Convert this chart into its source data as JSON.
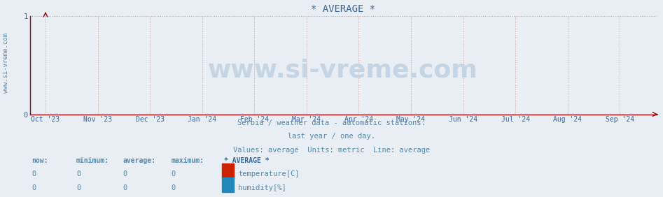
{
  "title": "* AVERAGE *",
  "title_color": "#336699",
  "title_fontsize": 10,
  "bg_color": "#e8eef4",
  "plot_bg_color": "#e8eef4",
  "axis_color": "#990000",
  "grid_color_h": "#99aabb",
  "grid_color_v": "#dd9999",
  "ylim": [
    0,
    1
  ],
  "yticks": [
    0,
    1
  ],
  "tick_color": "#336699",
  "x_labels": [
    "Oct '23",
    "Nov '23",
    "Dec '23",
    "Jan '24",
    "Feb '24",
    "Mar '24",
    "Apr '24",
    "May '24",
    "Jun '24",
    "Jul '24",
    "Aug '24",
    "Sep '24"
  ],
  "x_positions": [
    0,
    1,
    2,
    3,
    4,
    5,
    6,
    7,
    8,
    9,
    10,
    11
  ],
  "xlim": [
    -0.3,
    11.7
  ],
  "watermark_text": "www.si-vreme.com",
  "watermark_color": "#c5d5e5",
  "watermark_fontsize": 26,
  "subtitle_lines": [
    "Serbia / weather data - automatic stations.",
    "last year / one day.",
    "Values: average  Units: metric  Line: average"
  ],
  "subtitle_color": "#5588aa",
  "subtitle_fontsize": 7.5,
  "legend_title": "* AVERAGE *",
  "legend_items": [
    {
      "label": "temperature[C]",
      "color": "#cc2200"
    },
    {
      "label": "humidity[%]",
      "color": "#2288bb"
    }
  ],
  "legend_header_cols": [
    "now:",
    "minimum:",
    "average:",
    "maximum:"
  ],
  "legend_values": [
    [
      0,
      0,
      0,
      0
    ],
    [
      0,
      0,
      0,
      0
    ]
  ],
  "sidebar_text": "www.si-vreme.com",
  "sidebar_color": "#5588aa",
  "sidebar_fontsize": 6.5
}
